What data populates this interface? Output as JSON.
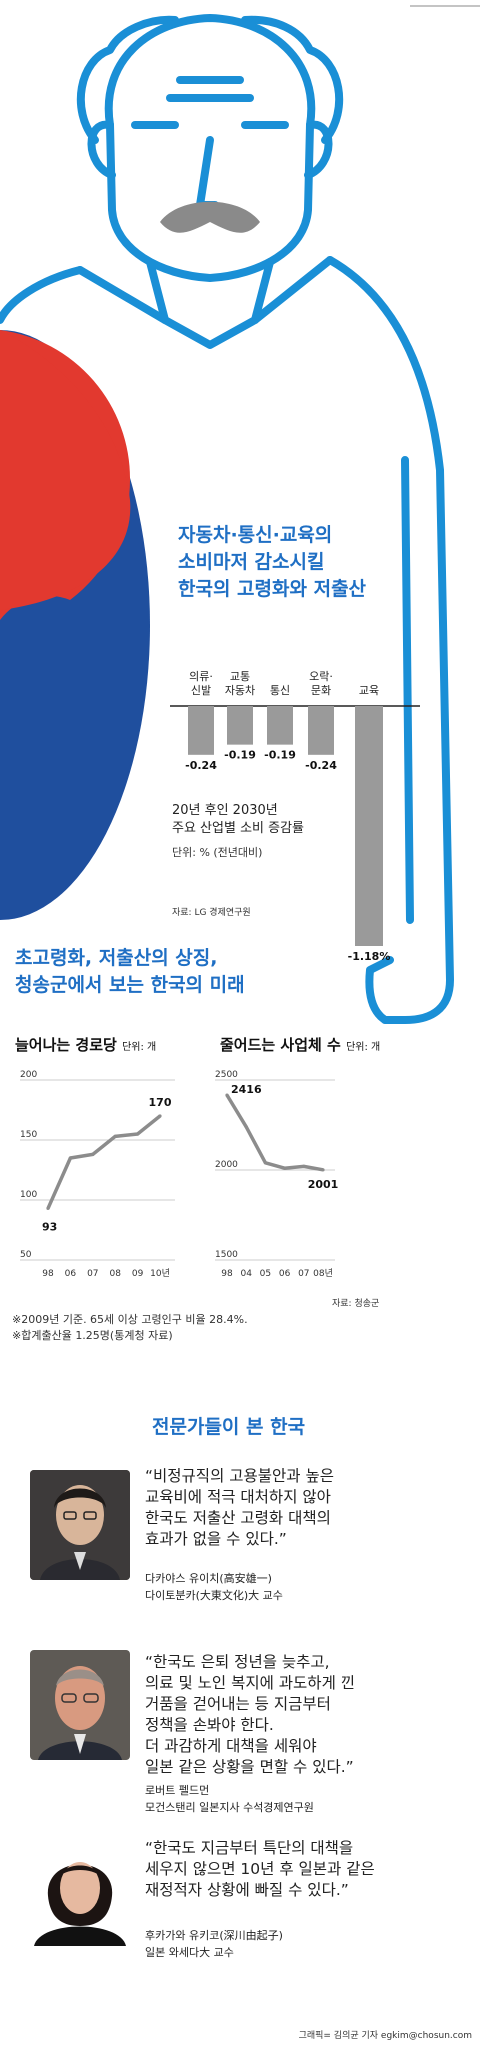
{
  "top_line_label": "",
  "title1": {
    "lines": [
      "자동차·통신·교육의",
      "소비마저 감소시킬",
      "한국의 고령화와 저출산"
    ]
  },
  "chart1": {
    "type": "bar",
    "categories": [
      [
        "의류·",
        "신발"
      ],
      [
        "교통",
        "자동차"
      ],
      [
        "통신"
      ],
      [
        "오락·",
        "문화"
      ],
      [
        "교육"
      ]
    ],
    "values": [
      -0.24,
      -0.19,
      -0.19,
      -0.24,
      -1.18
    ],
    "value_labels": [
      "-0.24",
      "-0.19",
      "-0.19",
      "-0.24",
      "-1.18%"
    ],
    "title_lines": [
      "20년 후인 2030년",
      "주요 산업별 소비 증감률"
    ],
    "unit": "단위: % (전년대비)",
    "source": "자료: LG 경제연구원",
    "bar_color": "#9a9a9a"
  },
  "title2": {
    "lines": [
      "초고령화, 저출산의 상징,",
      "청송군에서 보는 한국의 미래"
    ]
  },
  "chart2": {
    "type": "line",
    "title": "늘어나는 경로당",
    "unit": "단위: 개",
    "x": [
      "98",
      "06",
      "07",
      "08",
      "09",
      "10년"
    ],
    "y_ticks": [
      "200",
      "150",
      "100",
      "50"
    ],
    "ylim": [
      50,
      200
    ],
    "values": [
      93,
      135,
      138,
      153,
      155,
      170
    ],
    "first_label": "93",
    "last_label": "170",
    "line_color": "#8c8c8c"
  },
  "chart3": {
    "type": "line",
    "title": "줄어드는 사업체 수",
    "unit": "단위: 개",
    "x": [
      "98",
      "04",
      "05",
      "06",
      "07",
      "08년"
    ],
    "y_ticks": [
      "2500",
      "2000",
      "1500"
    ],
    "ylim": [
      1500,
      2500
    ],
    "values": [
      2416,
      2240,
      2040,
      2010,
      2020,
      2001
    ],
    "first_label": "2416",
    "last_label": "2001",
    "source": "자료: 청송군",
    "line_color": "#8c8c8c"
  },
  "notes": [
    "※2009년 기준. 65세 이상 고령인구 비율 28.4%.",
    "※합계출산율 1.25명(통계청 자료)"
  ],
  "experts": {
    "heading": "전문가들이 본 한국",
    "items": [
      {
        "quote": [
          "“비정규직의 고용불안과 높은",
          "교육비에 적극 대처하지 않아",
          "한국도 저출산 고령화 대책의",
          "효과가 없을 수 있다.”"
        ],
        "name": "다카야스 유이치(高安雄一)",
        "affiliation": "다이토분카(大東文化)大 교수"
      },
      {
        "quote": [
          "“한국도 은퇴 정년을 늦추고,",
          "의료 및 노인 복지에 과도하게 낀",
          "거품을 걷어내는 등 지금부터",
          "정책을 손봐야 한다.",
          "더 과감하게 대책을 세워야",
          "일본 같은 상황을 면할 수 있다.”"
        ],
        "name": "로버트 펠드먼",
        "affiliation": "모건스탠리 일본지사 수석경제연구원"
      },
      {
        "quote": [
          "“한국도 지금부터 특단의 대책을",
          "세우지 않으면 10년 후 일본과 같은",
          "재정적자 상황에 빠질 수 있다.”"
        ],
        "name": "후카가와 유키코(深川由起子)",
        "affiliation": "일본 와세다大 교수"
      }
    ]
  },
  "credit": "그래픽= 김의균 기자 egkim@chosun.com",
  "colors": {
    "outline_blue": "#1a8fd6",
    "title_blue": "#1f6fc4",
    "flag_red": "#e2392f",
    "flag_blue": "#1f4f9e"
  }
}
